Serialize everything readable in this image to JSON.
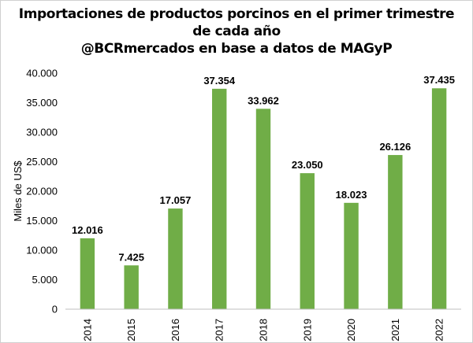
{
  "title_lines": [
    "Importaciones de productos porcinos en el primer trimestre",
    "de cada año",
    "@BCRmercados en base a datos de MAGyP"
  ],
  "chart_data": {
    "type": "bar",
    "title": "Importaciones de productos porcinos en el primer trimestre de cada año @BCRmercados en base a datos de MAGyP",
    "categories": [
      "2014",
      "2015",
      "2016",
      "2017",
      "2018",
      "2019",
      "2020",
      "2021",
      "2022"
    ],
    "values": [
      12016,
      7425,
      17057,
      37354,
      33962,
      23050,
      18023,
      26126,
      37435
    ],
    "value_labels": [
      "12.016",
      "7.425",
      "17.057",
      "37.354",
      "33.962",
      "23.050",
      "18.023",
      "26.126",
      "37.435"
    ],
    "ylabel": "Miles de US$",
    "xlabel": "",
    "ylim": [
      0,
      40000
    ],
    "yticks": [
      0,
      5000,
      10000,
      15000,
      20000,
      25000,
      30000,
      35000,
      40000
    ],
    "ytick_labels": [
      "0",
      "5.000",
      "10.000",
      "15.000",
      "20.000",
      "25.000",
      "30.000",
      "35.000",
      "40.000"
    ],
    "grid": false,
    "legend": "none",
    "bar_color": "#70AD47"
  }
}
